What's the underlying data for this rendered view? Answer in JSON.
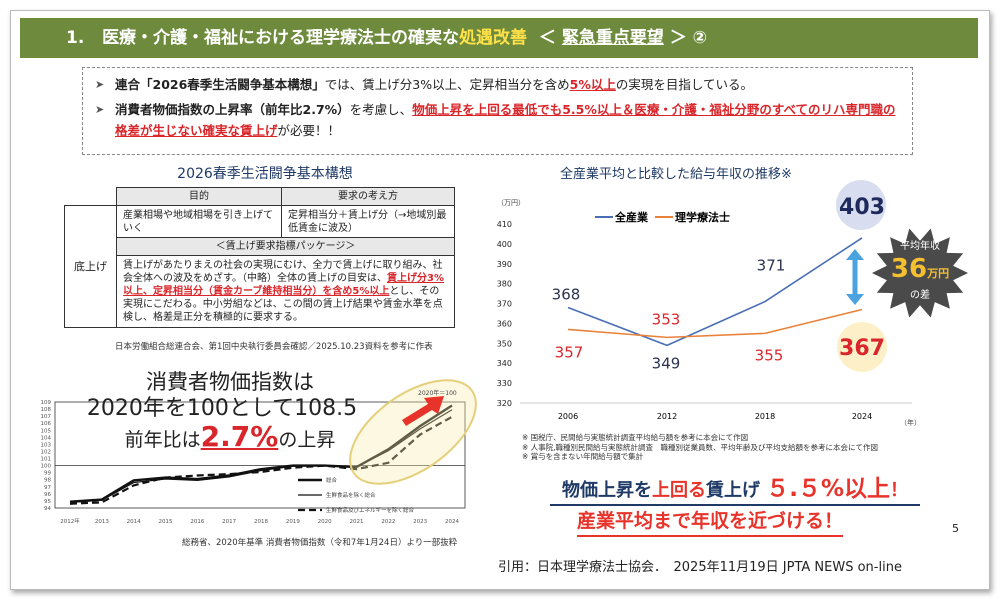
{
  "header": {
    "num": "1.",
    "title_a": "医療・介護・福祉における理学療法士の確実な",
    "title_highlight": "処遇改善",
    "title_b": "＜ ",
    "title_u": "緊急重点要望",
    "title_c": " ＞ ②"
  },
  "bullets": [
    {
      "b": "連合「2026春季生活闘争基本構想」",
      "t1": "では、賃上げ分3%以上、定昇相当分を含め",
      "r": "5%以上",
      "t2": "の実現を目指している。"
    },
    {
      "b": "消費者物価指数の上昇率（前年比2.7%）",
      "t1": "を考慮し、",
      "r": "物価上昇を上回る最低でも5.5%以上＆医療・介護・福祉分野のすべてのリハ専門職の格差が生じない確実な賃上げ",
      "t2": "が必要！！"
    }
  ],
  "table": {
    "title": "2026春季生活闘争基本構想",
    "h1": "目的",
    "h2": "要求の考え方",
    "row_label": "底上げ",
    "c1": "産業相場や地域相場を引き上げていく",
    "c2": "定昇相当分＋賃上げ分（→地域別最低賃金に波及）",
    "pkg": "＜賃上げ要求指標パッケージ＞",
    "body_a": "賃上げがあたりまえの社会の実現にむけ、全力で賃上げに取り組み、社会全体への波及をめざす。（中略）全体の賃上げの目安は、",
    "body_r": "賃上げ分3%以上、定昇相当分（賃金カーブ維持相当分）を含め5%以上",
    "body_b": "とし、その実現にこだわる。中小労組などは、この間の賃上げ結果や賃金水準を点検し、格差是正分を積極的に要求する。",
    "source": "日本労働組合総連合会、第1回中央執行委員会確認／2025.10.23資料を参考に作表"
  },
  "cpi": {
    "line1": "消費者物価指数は",
    "line2": "2020年を100として108.5",
    "line3a": "前年比は",
    "line3r": "2.7%",
    "line3b": "の上昇",
    "base_label": "2020年＝100",
    "source": "総務省、2020年基準 消費者物価指数（令和7年1月24日）より一部抜粋"
  },
  "wage": {
    "title": "全産業平均と比較した給与年収の推移※",
    "gap_l1": "平均年収",
    "gap_num": "36",
    "gap_unit": "万円",
    "gap_l2": "の差",
    "notes": [
      "※ 国税庁、民間給与実態統計調査平均給与額を参考に本会にて作図",
      "※ 人事院,職種別民間給与実態統計調査　職種別従業員数、平均年齢及び平均支給額を参考に本会にて作図",
      "※ 賞与を含まない年間給与額で集計"
    ]
  },
  "slogan": {
    "a": "物価上昇を",
    "b": "上回る",
    "c": "賃上げ",
    "d": "５.５%以上",
    "e": "！",
    "line2": "産業平均まで年収を近づける！"
  },
  "page_number": "5",
  "citation": "引用：日本理学療法士協会．　2025年11月19日 JPTA NEWS on-line",
  "colors": {
    "header": "#6e8b3d",
    "accent_red": "#d9262b",
    "navy": "#1f3a66",
    "all_industry": "#4a6fb5",
    "pt": "#e8823a"
  },
  "chart_data": [
    {
      "type": "line",
      "title": "全産業平均と比較した給与年収の推移※",
      "ylabel": "（万円）",
      "xlabel": "（年）",
      "categories": [
        "2006",
        "2012",
        "2018",
        "2024"
      ],
      "ylim": [
        320,
        410
      ],
      "yticks": [
        320,
        330,
        340,
        350,
        360,
        370,
        380,
        390,
        400,
        410
      ],
      "series": [
        {
          "name": "全産業",
          "color": "#4a6fb5",
          "values": [
            368,
            349,
            371,
            403
          ]
        },
        {
          "name": "理学療法士",
          "color": "#e8823a",
          "values": [
            357,
            353,
            355,
            367
          ]
        }
      ],
      "legend": "top"
    },
    {
      "type": "line",
      "title": "消費者物価指数",
      "categories": [
        "2012年",
        "2013",
        "2014",
        "2015",
        "2016",
        "2017",
        "2018",
        "2019",
        "2020",
        "2021",
        "2022",
        "2023",
        "2024"
      ],
      "ylim": [
        94,
        109
      ],
      "yticks": [
        94,
        95,
        96,
        97,
        98,
        99,
        100,
        101,
        102,
        103,
        104,
        105,
        106,
        107,
        108,
        109
      ],
      "series": [
        {
          "name": "総合",
          "values": [
            94.9,
            95.2,
            97.9,
            98.3,
            98.1,
            98.6,
            99.5,
            100.0,
            100.0,
            99.8,
            102.3,
            105.6,
            108.5
          ]
        },
        {
          "name": "生鮮食品を除く総合",
          "values": [
            94.8,
            95.1,
            97.6,
            98.1,
            97.9,
            98.4,
            99.3,
            99.9,
            100.0,
            99.8,
            102.1,
            105.2,
            107.9
          ]
        },
        {
          "name": "生鮮食品及びエネルギーを除く総合",
          "values": [
            94.6,
            94.8,
            97.2,
            98.3,
            98.6,
            98.8,
            99.1,
            99.7,
            100.0,
            99.5,
            100.4,
            104.4,
            106.9
          ]
        }
      ],
      "legend": "bottom-right"
    }
  ]
}
